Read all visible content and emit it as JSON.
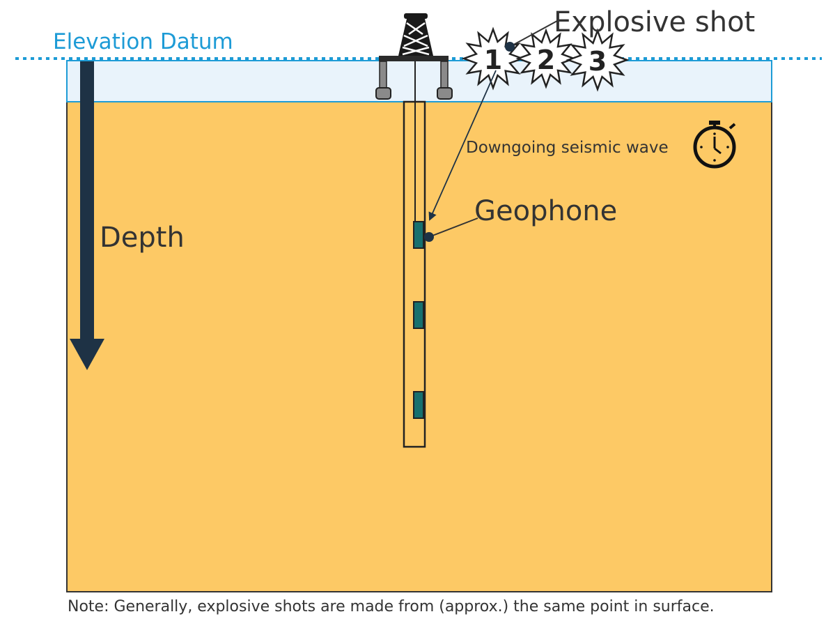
{
  "labels": {
    "elevation_datum": "Elevation Datum",
    "explosive_shot": "Explosive shot",
    "downgoing_wave": "Downgoing seismic wave",
    "geophone": "Geophone",
    "depth": "Depth",
    "note": "Note: Generally, explosive shots are made from (approx.) the same point in surface."
  },
  "shots": [
    "1",
    "2",
    "3"
  ],
  "colors": {
    "datum_blue": "#1d9bd6",
    "ground": "#fdc965",
    "surface_layer": "#e9f3fb",
    "depth_arrow": "#1e3245",
    "geophone": "#17706e",
    "text": "#333333",
    "outline": "#222222"
  },
  "icons": {
    "rig": "drilling-rig-icon",
    "timer": "stopwatch-icon"
  }
}
